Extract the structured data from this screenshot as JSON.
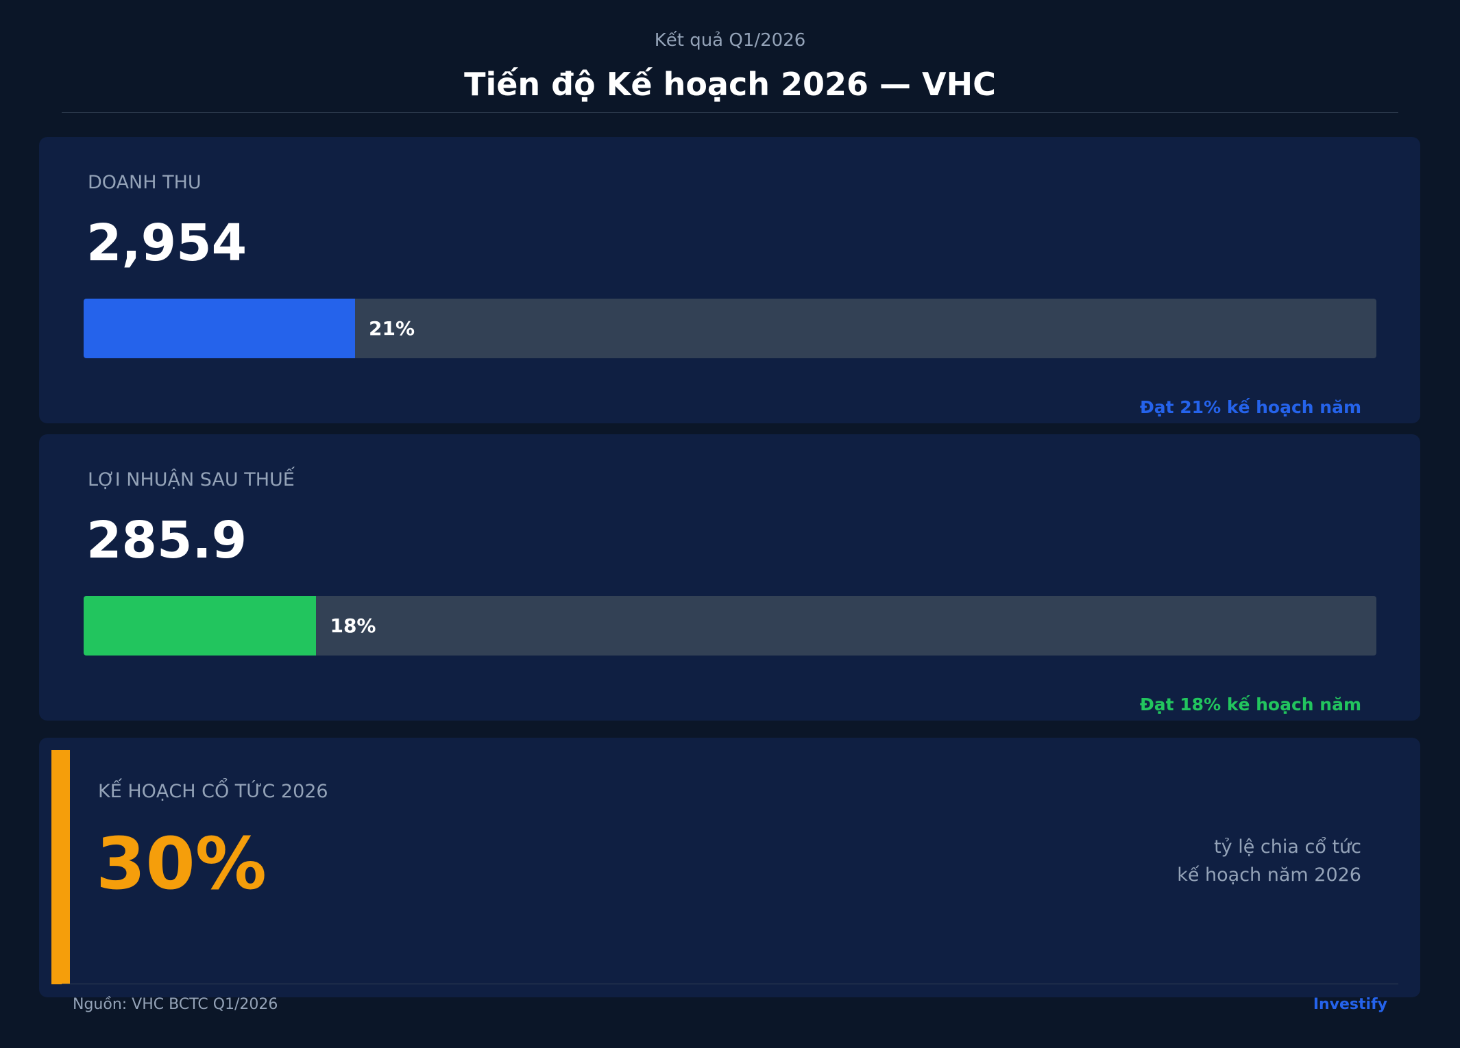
{
  "header": {
    "subtitle": "Kết quả Q1/2026",
    "title": "Tiến độ Kế hoạch 2026 — VHC"
  },
  "cards": [
    {
      "label": "DOANH THU",
      "value": "2,954",
      "progress": 21,
      "progress_label": "21%",
      "note": "Đạt 21% kế hoạch năm",
      "color": "#2563eb"
    },
    {
      "label": "LỢI NHUẬN SAU THUẾ",
      "value": "285.9",
      "progress": 18,
      "progress_label": "18%",
      "note": "Đạt 18% kế hoạch năm",
      "color": "#22c55e"
    }
  ],
  "dividend": {
    "label": "KẾ HOẠCH CỔ TỨC 2026",
    "value": "30%",
    "description": [
      "tỷ lệ chia cổ tức",
      "kế hoạch năm 2026"
    ],
    "color": "#f59e0b"
  },
  "footer": {
    "source": "Nguồn: VHC BCTC Q1/2026",
    "brand": "Investify"
  }
}
